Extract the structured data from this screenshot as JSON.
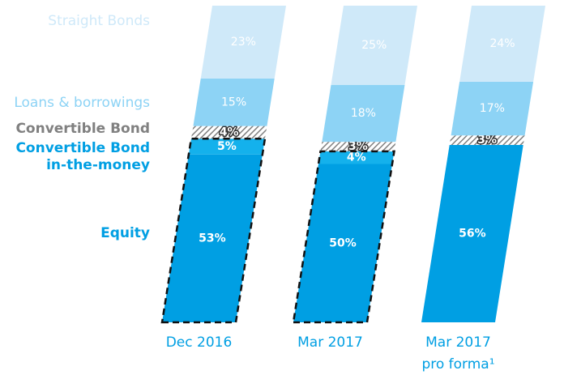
{
  "chart_data": {
    "type": "stacked_bar",
    "categories": [
      "Dec 2016",
      "Mar 2017",
      "Mar 2017 pro forma¹"
    ],
    "ylim": [
      0,
      100
    ],
    "outline_dashed": [
      true,
      true,
      false
    ],
    "series": [
      {
        "name": "Equity",
        "color": "#009fe3",
        "values": [
          53,
          50,
          56
        ],
        "value_labels": [
          "53%",
          "50%",
          "56%"
        ],
        "outlined": true
      },
      {
        "name": "Convertible Bond in-the-money",
        "color": "#14b1ec",
        "values": [
          5,
          4,
          null
        ],
        "value_labels": [
          "5%",
          "4%",
          null
        ],
        "outlined": true
      },
      {
        "name": "Convertible Bond",
        "color": "#808080",
        "hatch": true,
        "values": [
          4,
          3,
          3
        ],
        "value_labels": [
          "4%",
          "3%",
          "3%"
        ]
      },
      {
        "name": "Loans & borrowings",
        "color": "#8dd3f5",
        "values": [
          15,
          18,
          17
        ],
        "value_labels": [
          "15%",
          "18%",
          "17%"
        ]
      },
      {
        "name": "Straight Bonds",
        "color": "#cfe9f9",
        "values": [
          23,
          25,
          24
        ],
        "value_labels": [
          "23%",
          "25%",
          "24%"
        ]
      }
    ]
  }
}
